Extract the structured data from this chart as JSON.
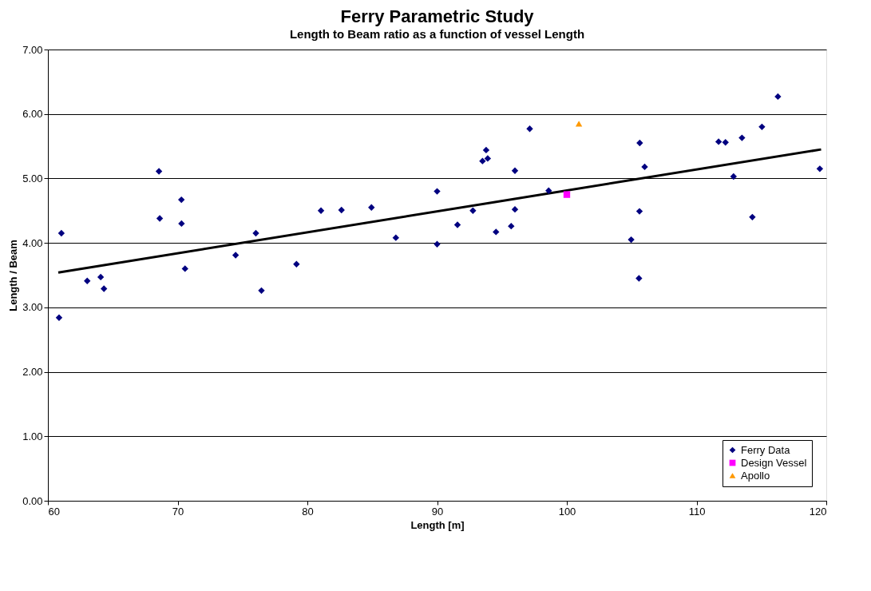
{
  "chart_data": {
    "type": "scatter",
    "title": "Ferry Parametric Study",
    "subtitle": "Length to Beam ratio as a function of vessel Length",
    "xlabel": "Length [m]",
    "ylabel": "Length / Beam",
    "xlim": [
      60,
      120
    ],
    "xticks": [
      60,
      70,
      80,
      90,
      100,
      110,
      120
    ],
    "ylim": [
      0,
      7
    ],
    "yticks": [
      {
        "value": 0,
        "label": "0.00"
      },
      {
        "value": 1,
        "label": "1.00"
      },
      {
        "value": 2,
        "label": "2.00"
      },
      {
        "value": 3,
        "label": "3.00"
      },
      {
        "value": 4,
        "label": "4.00"
      },
      {
        "value": 5,
        "label": "5.00"
      },
      {
        "value": 6,
        "label": "6.00"
      },
      {
        "value": 7,
        "label": "7.00"
      }
    ],
    "grid": "y",
    "legend": "bottom right",
    "series": [
      {
        "name": "Ferry Data",
        "color": "#000080",
        "marker": "diamond",
        "x": [
          60.86,
          61.04,
          63.03,
          64.07,
          64.32,
          68.56,
          68.62,
          70.29,
          70.3,
          70.57,
          74.47,
          76.03,
          76.46,
          79.16,
          81.05,
          82.63,
          84.94,
          86.82,
          90.0,
          90.0,
          91.57,
          92.76,
          93.5,
          93.78,
          93.9,
          94.54,
          95.71,
          96.0,
          96.0,
          97.14,
          98.6,
          104.96,
          105.56,
          105.6,
          105.62,
          106.0,
          111.7,
          112.23,
          112.85,
          113.5,
          114.3,
          115.04,
          116.27,
          119.5
        ],
        "values": [
          2.84,
          4.15,
          3.41,
          3.47,
          3.29,
          5.11,
          4.38,
          4.67,
          4.3,
          3.6,
          3.81,
          4.15,
          3.26,
          3.67,
          4.5,
          4.51,
          4.55,
          4.08,
          4.8,
          3.98,
          4.28,
          4.5,
          5.27,
          5.44,
          5.31,
          4.17,
          4.26,
          5.12,
          4.52,
          5.77,
          4.81,
          4.05,
          3.45,
          4.49,
          5.55,
          5.18,
          5.57,
          5.56,
          5.03,
          5.63,
          4.4,
          5.8,
          6.27,
          5.15
        ]
      },
      {
        "name": "Design Vessel",
        "color": "#ff00ff",
        "marker": "square",
        "x": [
          100.0
        ],
        "values": [
          4.75
        ]
      },
      {
        "name": "Apollo",
        "color": "#ff9900",
        "marker": "triangle",
        "x": [
          100.93
        ],
        "values": [
          5.85
        ]
      },
      {
        "type": "line",
        "color": "#000000",
        "line_style": "solid",
        "x": [
          60.8,
          119.6
        ],
        "values": [
          3.54,
          5.45
        ]
      }
    ]
  }
}
